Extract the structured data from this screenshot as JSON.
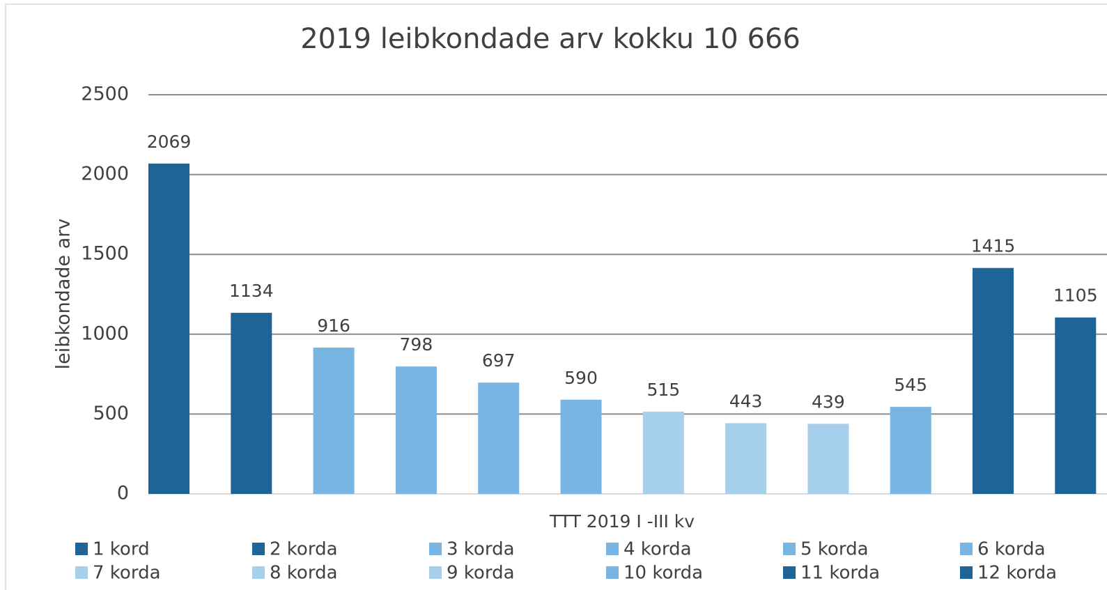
{
  "chart_data": {
    "type": "bar",
    "title": "2019  leibkondade arv kokku 10 666",
    "y_label": "leibkondade arv",
    "categories": [
      "TTT 2019 I -III kv"
    ],
    "series": [
      {
        "name": "1 kord",
        "color": "#1f6496",
        "values": [
          2069
        ]
      },
      {
        "name": "2 korda",
        "color": "#1f6496",
        "values": [
          1134
        ]
      },
      {
        "name": "3 korda",
        "color": "#79b5e3",
        "values": [
          916
        ]
      },
      {
        "name": "4 korda",
        "color": "#79b5e3",
        "values": [
          798
        ]
      },
      {
        "name": "5 korda",
        "color": "#79b5e3",
        "values": [
          697
        ]
      },
      {
        "name": "6 korda",
        "color": "#79b5e3",
        "values": [
          590
        ]
      },
      {
        "name": "7 korda",
        "color": "#a7cfee",
        "values": [
          515
        ]
      },
      {
        "name": "8 korda",
        "color": "#a7cfee",
        "values": [
          443
        ]
      },
      {
        "name": "9 korda",
        "color": "#a7cfee",
        "values": [
          439
        ]
      },
      {
        "name": "10 korda",
        "color": "#79b5e3",
        "values": [
          545
        ]
      },
      {
        "name": "11 korda",
        "color": "#1f6496",
        "values": [
          1415
        ]
      },
      {
        "name": "12 korda",
        "color": "#1f6496",
        "values": [
          1105
        ]
      }
    ],
    "ylim": [
      0,
      2500
    ],
    "yticks": [
      0,
      500,
      1000,
      1500,
      2000,
      2500
    ],
    "grid": true
  }
}
